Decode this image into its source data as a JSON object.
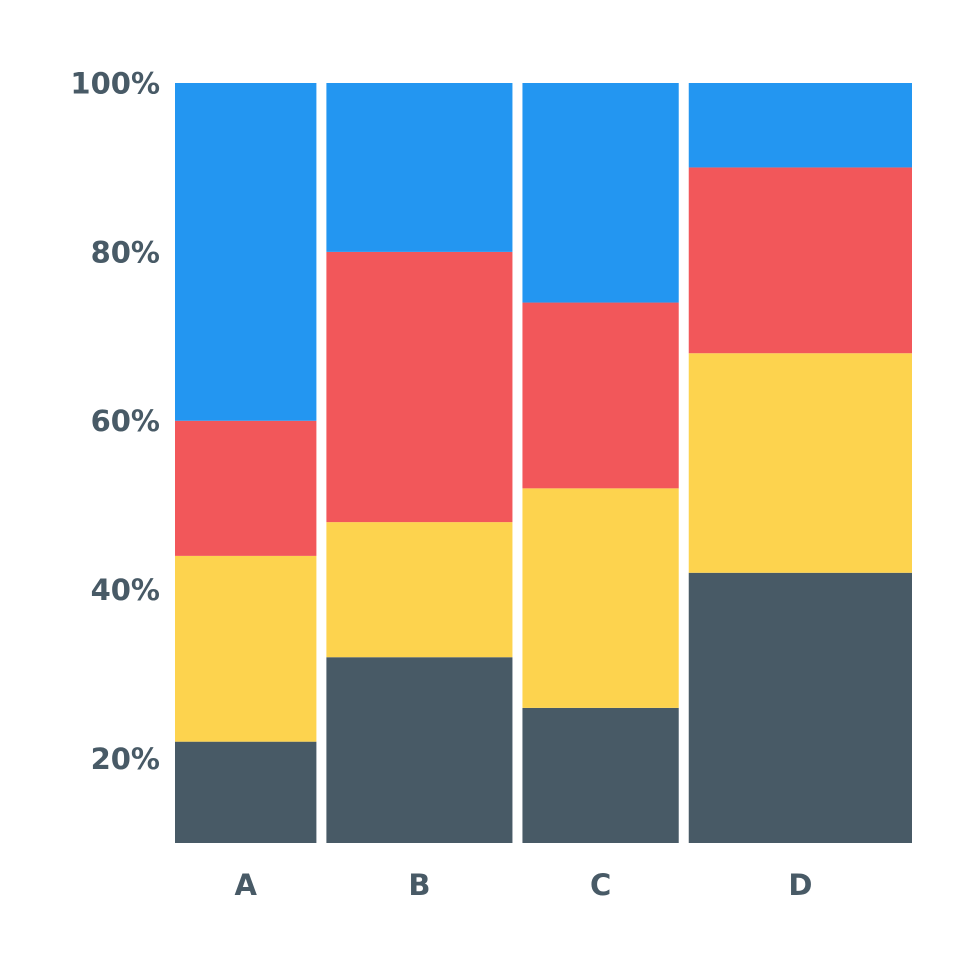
{
  "chart_data": {
    "type": "bar",
    "stacked": true,
    "variable_width": true,
    "title": "",
    "xlabel": "",
    "ylabel": "",
    "categories": [
      "A",
      "B",
      "C",
      "D"
    ],
    "category_widths": [
      19,
      25,
      21,
      30
    ],
    "y_axis": {
      "ticks": [
        20,
        40,
        60,
        80,
        100
      ],
      "tick_labels": [
        "20%",
        "40%",
        "60%",
        "80%",
        "100%"
      ],
      "range": [
        10,
        100
      ]
    },
    "grid": false,
    "legend": "none",
    "series": [
      {
        "color": "#485a66",
        "values": [
          22,
          32,
          26,
          42
        ]
      },
      {
        "color": "#fdd34e",
        "values": [
          22,
          16,
          26,
          26
        ]
      },
      {
        "color": "#f2575a",
        "values": [
          16,
          32,
          22,
          22
        ]
      },
      {
        "color": "#2396f1",
        "values": [
          42,
          22,
          28,
          12
        ]
      }
    ]
  }
}
